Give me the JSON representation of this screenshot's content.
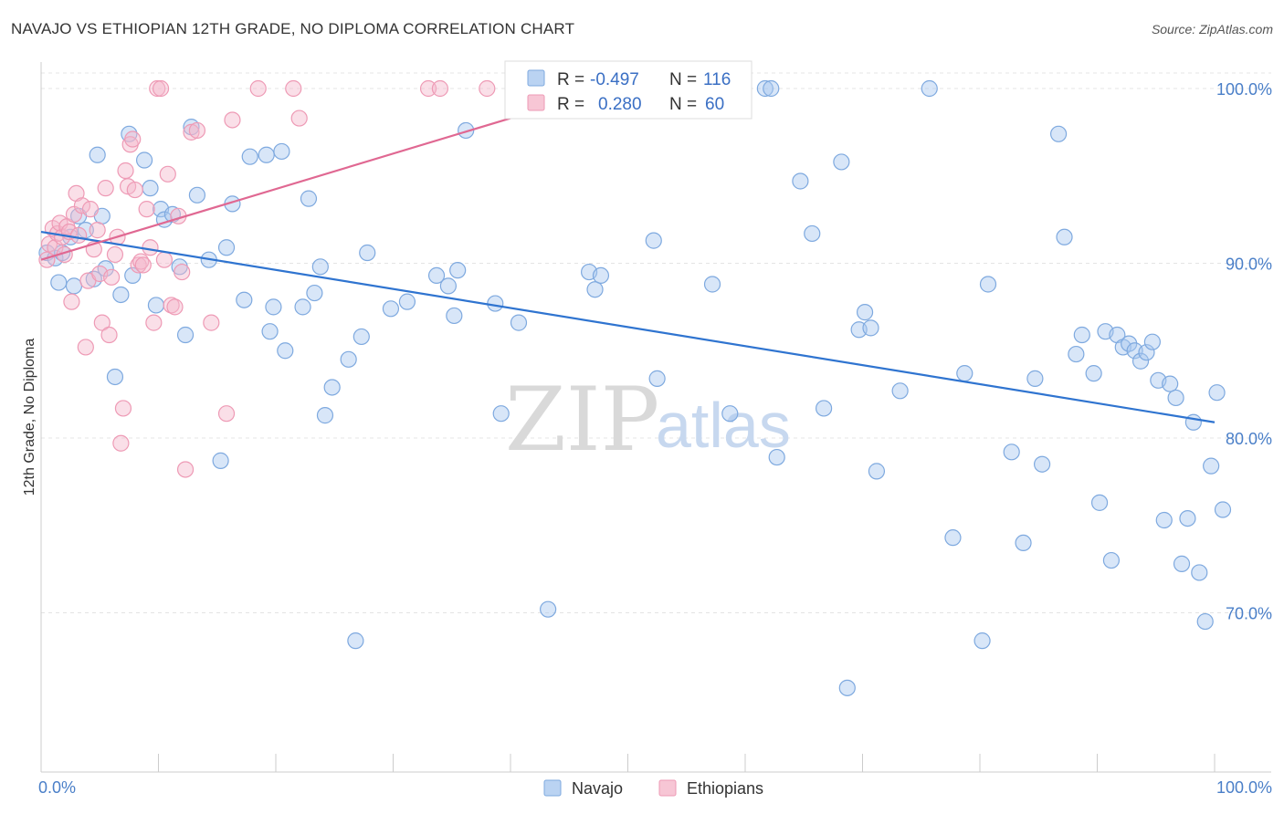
{
  "title": "NAVAJO VS ETHIOPIAN 12TH GRADE, NO DIPLOMA CORRELATION CHART",
  "source": "Source: ZipAtlas.com",
  "watermark": {
    "zip": "ZIP",
    "atlas": "atlas"
  },
  "colors": {
    "navajo": "#a9c8ef",
    "navajo_line": "#2f74d0",
    "ethiopians": "#f5b8cb",
    "ethiopians_line": "#e06892",
    "tick_label": "#4a7fc8",
    "grid": "#e4e4e4"
  },
  "legend": {
    "rows": [
      {
        "r_label": "R = ",
        "r_value": "-0.497",
        "n_label": "N = ",
        "n_value": "116"
      },
      {
        "r_label": "R = ",
        "r_value": "0.280",
        "n_label": "N = ",
        "n_value": "60"
      }
    ]
  },
  "chart_data": {
    "type": "scatter",
    "title": "NAVAJO VS ETHIOPIAN 12TH GRADE, NO DIPLOMA CORRELATION CHART",
    "ylabel": "12th Grade, No Diploma",
    "xlabel": "",
    "xlim": [
      0,
      100
    ],
    "ylim": [
      60,
      100
    ],
    "x_tick_labels": [
      "0.0%",
      "100.0%"
    ],
    "y_ticks": [
      {
        "value": 70,
        "label": "70.0%"
      },
      {
        "value": 80,
        "label": "80.0%"
      },
      {
        "value": 90,
        "label": "90.0%"
      },
      {
        "value": 100,
        "label": "100.0%"
      }
    ],
    "grid": true,
    "legend_position": "top-center",
    "series": [
      {
        "name": "Navajo",
        "trend": {
          "x": [
            0,
            100
          ],
          "y": [
            91.8,
            80.9
          ]
        },
        "points": [
          [
            0.5,
            90.6
          ],
          [
            1.2,
            90.3
          ],
          [
            1.5,
            88.9
          ],
          [
            1.8,
            90.6
          ],
          [
            2.5,
            91.5
          ],
          [
            2.8,
            88.7
          ],
          [
            3.2,
            92.7
          ],
          [
            3.8,
            91.9
          ],
          [
            4.5,
            89.1
          ],
          [
            4.8,
            96.2
          ],
          [
            5.2,
            92.7
          ],
          [
            5.5,
            89.7
          ],
          [
            6.3,
            83.5
          ],
          [
            6.8,
            88.2
          ],
          [
            7.5,
            97.4
          ],
          [
            7.8,
            89.3
          ],
          [
            8.8,
            95.9
          ],
          [
            9.3,
            94.3
          ],
          [
            9.8,
            87.6
          ],
          [
            10.2,
            93.1
          ],
          [
            10.5,
            92.5
          ],
          [
            11.2,
            92.8
          ],
          [
            11.8,
            89.8
          ],
          [
            12.3,
            85.9
          ],
          [
            12.8,
            97.8
          ],
          [
            13.3,
            93.9
          ],
          [
            14.3,
            90.2
          ],
          [
            15.3,
            78.7
          ],
          [
            15.8,
            90.9
          ],
          [
            16.3,
            93.4
          ],
          [
            17.3,
            87.9
          ],
          [
            17.8,
            96.1
          ],
          [
            19.2,
            96.2
          ],
          [
            19.5,
            86.1
          ],
          [
            19.8,
            87.5
          ],
          [
            20.5,
            96.4
          ],
          [
            20.8,
            85.0
          ],
          [
            22.3,
            87.5
          ],
          [
            22.8,
            93.7
          ],
          [
            23.3,
            88.3
          ],
          [
            23.8,
            89.8
          ],
          [
            24.2,
            81.3
          ],
          [
            24.8,
            82.9
          ],
          [
            26.2,
            84.5
          ],
          [
            26.8,
            68.4
          ],
          [
            27.3,
            85.8
          ],
          [
            27.8,
            90.6
          ],
          [
            29.8,
            87.4
          ],
          [
            31.2,
            87.8
          ],
          [
            33.7,
            89.3
          ],
          [
            34.7,
            88.7
          ],
          [
            35.2,
            87.0
          ],
          [
            35.5,
            89.6
          ],
          [
            36.2,
            97.6
          ],
          [
            38.7,
            87.7
          ],
          [
            39.2,
            81.4
          ],
          [
            40.7,
            86.6
          ],
          [
            43.2,
            70.2
          ],
          [
            46.7,
            89.5
          ],
          [
            47.2,
            88.5
          ],
          [
            47.7,
            89.3
          ],
          [
            51.7,
            99.8
          ],
          [
            52.2,
            91.3
          ],
          [
            52.5,
            83.4
          ],
          [
            52.8,
            99.7
          ],
          [
            57.2,
            88.8
          ],
          [
            58.7,
            81.4
          ],
          [
            61.7,
            100.0
          ],
          [
            62.2,
            100.0
          ],
          [
            62.7,
            78.9
          ],
          [
            64.7,
            94.7
          ],
          [
            65.7,
            91.7
          ],
          [
            66.7,
            81.7
          ],
          [
            68.2,
            95.8
          ],
          [
            68.7,
            65.7
          ],
          [
            69.7,
            86.2
          ],
          [
            70.2,
            87.2
          ],
          [
            70.7,
            86.3
          ],
          [
            71.2,
            78.1
          ],
          [
            73.2,
            82.7
          ],
          [
            75.7,
            100.0
          ],
          [
            77.7,
            74.3
          ],
          [
            78.7,
            83.7
          ],
          [
            80.2,
            68.4
          ],
          [
            80.7,
            88.8
          ],
          [
            82.7,
            79.2
          ],
          [
            83.7,
            74.0
          ],
          [
            84.7,
            83.4
          ],
          [
            85.3,
            78.5
          ],
          [
            86.7,
            97.4
          ],
          [
            87.2,
            91.5
          ],
          [
            88.2,
            84.8
          ],
          [
            88.7,
            85.9
          ],
          [
            89.7,
            83.7
          ],
          [
            90.2,
            76.3
          ],
          [
            90.7,
            86.1
          ],
          [
            91.2,
            73.0
          ],
          [
            91.7,
            85.9
          ],
          [
            92.2,
            85.2
          ],
          [
            92.7,
            85.4
          ],
          [
            93.2,
            85.0
          ],
          [
            93.7,
            84.4
          ],
          [
            94.2,
            84.9
          ],
          [
            94.7,
            85.5
          ],
          [
            95.2,
            83.3
          ],
          [
            95.7,
            75.3
          ],
          [
            96.2,
            83.1
          ],
          [
            96.7,
            82.3
          ],
          [
            97.2,
            72.8
          ],
          [
            97.7,
            75.4
          ],
          [
            98.2,
            80.9
          ],
          [
            98.7,
            72.3
          ],
          [
            99.2,
            69.5
          ],
          [
            99.7,
            78.4
          ],
          [
            100.2,
            82.6
          ],
          [
            100.7,
            75.9
          ]
        ]
      },
      {
        "name": "Ethiopians",
        "trend": {
          "x": [
            0,
            40
          ],
          "y": [
            90.2,
            98.3
          ]
        },
        "points": [
          [
            0.5,
            90.2
          ],
          [
            0.7,
            91.1
          ],
          [
            1.0,
            92.0
          ],
          [
            1.2,
            90.9
          ],
          [
            1.4,
            91.7
          ],
          [
            1.6,
            92.3
          ],
          [
            1.8,
            91.5
          ],
          [
            2.0,
            90.5
          ],
          [
            2.2,
            92.1
          ],
          [
            2.4,
            91.8
          ],
          [
            2.6,
            87.8
          ],
          [
            2.8,
            92.8
          ],
          [
            3.0,
            94.0
          ],
          [
            3.2,
            91.6
          ],
          [
            3.5,
            93.3
          ],
          [
            3.8,
            85.2
          ],
          [
            4.0,
            89.0
          ],
          [
            4.2,
            93.1
          ],
          [
            4.5,
            90.8
          ],
          [
            4.8,
            91.9
          ],
          [
            5.0,
            89.4
          ],
          [
            5.2,
            86.6
          ],
          [
            5.5,
            94.3
          ],
          [
            5.8,
            85.9
          ],
          [
            6.0,
            89.2
          ],
          [
            6.3,
            90.5
          ],
          [
            6.5,
            91.5
          ],
          [
            6.8,
            79.7
          ],
          [
            7.0,
            81.7
          ],
          [
            7.2,
            95.3
          ],
          [
            7.4,
            94.4
          ],
          [
            7.6,
            96.8
          ],
          [
            7.8,
            97.1
          ],
          [
            8.0,
            94.2
          ],
          [
            8.3,
            89.9
          ],
          [
            8.5,
            90.1
          ],
          [
            8.7,
            89.9
          ],
          [
            9.0,
            93.1
          ],
          [
            9.3,
            90.9
          ],
          [
            9.6,
            86.6
          ],
          [
            9.9,
            100.0
          ],
          [
            10.2,
            100.0
          ],
          [
            10.5,
            90.2
          ],
          [
            10.8,
            95.1
          ],
          [
            11.1,
            87.6
          ],
          [
            11.4,
            87.5
          ],
          [
            11.7,
            92.7
          ],
          [
            12.0,
            89.5
          ],
          [
            12.3,
            78.2
          ],
          [
            12.8,
            97.5
          ],
          [
            13.3,
            97.6
          ],
          [
            14.5,
            86.6
          ],
          [
            15.8,
            81.4
          ],
          [
            16.3,
            98.2
          ],
          [
            18.5,
            100.0
          ],
          [
            21.5,
            100.0
          ],
          [
            22.0,
            98.3
          ],
          [
            33.0,
            100.0
          ],
          [
            34.0,
            100.0
          ],
          [
            38.0,
            100.0
          ]
        ]
      }
    ]
  }
}
